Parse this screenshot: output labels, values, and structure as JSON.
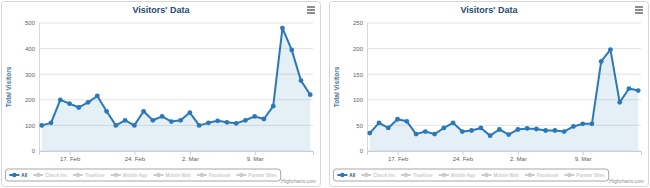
{
  "chart_data": [
    {
      "type": "area",
      "title": "Visitors' Data",
      "y_label": "Total Visitors",
      "credits": "Highcharts.com",
      "categories": [
        null,
        null,
        null,
        "17. Feb",
        null,
        null,
        null,
        null,
        null,
        null,
        "24. Feb",
        null,
        null,
        null,
        null,
        null,
        "2. Mar",
        null,
        null,
        null,
        null,
        null,
        null,
        "9. Mar",
        null,
        null,
        null,
        null,
        null,
        null
      ],
      "series": [
        {
          "name": "All",
          "color": "#2b78b8",
          "marker": "circle",
          "values": [
            100,
            110,
            200,
            185,
            170,
            190,
            215,
            155,
            100,
            120,
            100,
            155,
            120,
            135,
            115,
            120,
            150,
            100,
            110,
            118,
            112,
            108,
            120,
            135,
            125,
            175,
            480,
            395,
            275,
            220
          ]
        },
        {
          "name": "Check Ins",
          "values": [
            null,
            null,
            null,
            null,
            null,
            null,
            null,
            null,
            null,
            null,
            null,
            null,
            null,
            null,
            null,
            null,
            null,
            null,
            null,
            null,
            null,
            null,
            null,
            null,
            null,
            null,
            null,
            null,
            null,
            null
          ]
        },
        {
          "name": "Truefloor",
          "values": [
            null,
            null,
            null,
            null,
            null,
            null,
            null,
            null,
            null,
            null,
            null,
            null,
            null,
            null,
            null,
            null,
            null,
            null,
            null,
            null,
            null,
            null,
            null,
            null,
            null,
            null,
            null,
            null,
            null,
            null
          ]
        },
        {
          "name": "Mobile App",
          "values": [
            null,
            null,
            null,
            null,
            null,
            null,
            null,
            null,
            null,
            null,
            null,
            null,
            null,
            null,
            null,
            null,
            null,
            null,
            null,
            null,
            null,
            null,
            null,
            null,
            null,
            null,
            null,
            null,
            null,
            null
          ]
        },
        {
          "name": "Mobile Web",
          "values": [
            null,
            null,
            null,
            null,
            null,
            null,
            null,
            null,
            null,
            null,
            null,
            null,
            null,
            null,
            null,
            null,
            null,
            null,
            null,
            null,
            null,
            null,
            null,
            null,
            null,
            null,
            null,
            null,
            null,
            null
          ]
        },
        {
          "name": "Facebook",
          "values": [
            null,
            null,
            null,
            null,
            null,
            null,
            null,
            null,
            null,
            null,
            null,
            null,
            null,
            null,
            null,
            null,
            null,
            null,
            null,
            null,
            null,
            null,
            null,
            null,
            null,
            null,
            null,
            null,
            null,
            null
          ]
        },
        {
          "name": "Partner Sites",
          "values": [
            null,
            null,
            null,
            null,
            null,
            null,
            null,
            null,
            null,
            null,
            null,
            null,
            null,
            null,
            null,
            null,
            null,
            null,
            null,
            null,
            null,
            null,
            null,
            null,
            null,
            null,
            null,
            null,
            null,
            null
          ]
        }
      ],
      "ylim": [
        0,
        500
      ],
      "yticks": [
        0,
        100,
        200,
        300,
        400,
        500
      ],
      "grid": true,
      "legend": "bottom"
    },
    {
      "type": "area",
      "title": "Visitors' Data",
      "y_label": "Total Visitors",
      "credits": "Highcharts.com",
      "categories": [
        null,
        null,
        null,
        "17. Feb",
        null,
        null,
        null,
        null,
        null,
        null,
        "24. Feb",
        null,
        null,
        null,
        null,
        null,
        "2. Mar",
        null,
        null,
        null,
        null,
        null,
        null,
        "9. Mar",
        null,
        null,
        null,
        null,
        null,
        null
      ],
      "series": [
        {
          "name": "All",
          "color": "#2b78b8",
          "marker": "circle",
          "values": [
            35,
            55,
            45,
            62,
            58,
            33,
            38,
            33,
            45,
            55,
            38,
            40,
            45,
            30,
            42,
            32,
            42,
            44,
            43,
            40,
            40,
            38,
            48,
            53,
            53,
            175,
            198,
            95,
            122,
            118
          ]
        },
        {
          "name": "Check Ins",
          "values": [
            null,
            null,
            null,
            null,
            null,
            null,
            null,
            null,
            null,
            null,
            null,
            null,
            null,
            null,
            null,
            null,
            null,
            null,
            null,
            null,
            null,
            null,
            null,
            null,
            null,
            null,
            null,
            null,
            null,
            null
          ]
        },
        {
          "name": "Truefloor",
          "values": [
            null,
            null,
            null,
            null,
            null,
            null,
            null,
            null,
            null,
            null,
            null,
            null,
            null,
            null,
            null,
            null,
            null,
            null,
            null,
            null,
            null,
            null,
            null,
            null,
            null,
            null,
            null,
            null,
            null,
            null
          ]
        },
        {
          "name": "Mobile App",
          "values": [
            null,
            null,
            null,
            null,
            null,
            null,
            null,
            null,
            null,
            null,
            null,
            null,
            null,
            null,
            null,
            null,
            null,
            null,
            null,
            null,
            null,
            null,
            null,
            null,
            null,
            null,
            null,
            null,
            null,
            null
          ]
        },
        {
          "name": "Mobile Web",
          "values": [
            null,
            null,
            null,
            null,
            null,
            null,
            null,
            null,
            null,
            null,
            null,
            null,
            null,
            null,
            null,
            null,
            null,
            null,
            null,
            null,
            null,
            null,
            null,
            null,
            null,
            null,
            null,
            null,
            null,
            null
          ]
        },
        {
          "name": "Facebook",
          "values": [
            null,
            null,
            null,
            null,
            null,
            null,
            null,
            null,
            null,
            null,
            null,
            null,
            null,
            null,
            null,
            null,
            null,
            null,
            null,
            null,
            null,
            null,
            null,
            null,
            null,
            null,
            null,
            null,
            null,
            null
          ]
        },
        {
          "name": "Partner Sites",
          "values": [
            null,
            null,
            null,
            null,
            null,
            null,
            null,
            null,
            null,
            null,
            null,
            null,
            null,
            null,
            null,
            null,
            null,
            null,
            null,
            null,
            null,
            null,
            null,
            null,
            null,
            null,
            null,
            null,
            null,
            null
          ]
        }
      ],
      "ylim": [
        0,
        250
      ],
      "yticks": [
        0,
        50,
        100,
        150,
        200,
        250
      ],
      "grid": true,
      "legend": "bottom"
    }
  ]
}
